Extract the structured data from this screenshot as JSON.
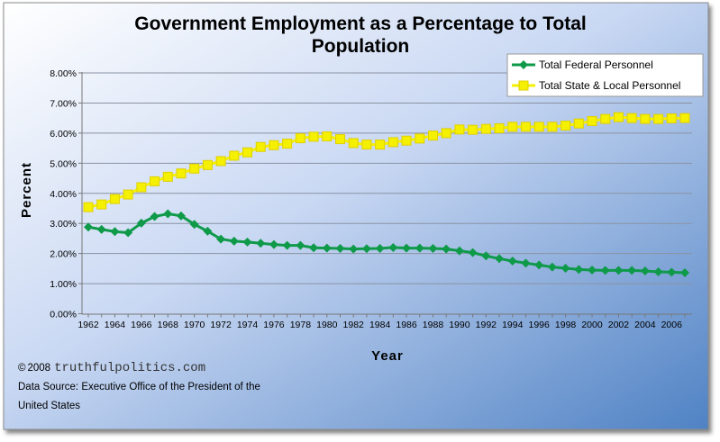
{
  "chart_data": {
    "type": "line",
    "title": "Government Employment as a Percentage to Total Population",
    "title_lines": [
      "Government Employment as a Percentage to Total",
      "Population"
    ],
    "xlabel": "Year",
    "ylabel": "Percent",
    "ylim": [
      0,
      8
    ],
    "yticks": [
      "0.00%",
      "1.00%",
      "2.00%",
      "3.00%",
      "4.00%",
      "5.00%",
      "6.00%",
      "7.00%",
      "8.00%"
    ],
    "xticks": [
      "1962",
      "1964",
      "1966",
      "1968",
      "1970",
      "1972",
      "1974",
      "1976",
      "1978",
      "1980",
      "1982",
      "1984",
      "1986",
      "1988",
      "1990",
      "1992",
      "1994",
      "1996",
      "1998",
      "2000",
      "2002",
      "2004",
      "2006"
    ],
    "grid": true,
    "legend_placement": "top-right",
    "x": [
      1962,
      1963,
      1964,
      1965,
      1966,
      1967,
      1968,
      1969,
      1970,
      1971,
      1972,
      1973,
      1974,
      1975,
      1976,
      1977,
      1978,
      1979,
      1980,
      1981,
      1982,
      1983,
      1984,
      1985,
      1986,
      1987,
      1988,
      1989,
      1990,
      1991,
      1992,
      1993,
      1994,
      1995,
      1996,
      1997,
      1998,
      1999,
      2000,
      2001,
      2002,
      2003,
      2004,
      2005,
      2006,
      2007
    ],
    "series": [
      {
        "name": "Total Federal Personnel",
        "color": "#0f9a4a",
        "marker": "diamond",
        "values": [
          2.88,
          2.8,
          2.73,
          2.69,
          3.01,
          3.23,
          3.32,
          3.25,
          2.97,
          2.74,
          2.48,
          2.41,
          2.38,
          2.34,
          2.3,
          2.27,
          2.27,
          2.19,
          2.18,
          2.17,
          2.15,
          2.16,
          2.17,
          2.2,
          2.18,
          2.18,
          2.17,
          2.15,
          2.09,
          2.03,
          1.92,
          1.83,
          1.75,
          1.68,
          1.62,
          1.55,
          1.51,
          1.47,
          1.45,
          1.44,
          1.44,
          1.44,
          1.42,
          1.39,
          1.38,
          1.36
        ]
      },
      {
        "name": "Total State & Local Personnel",
        "color": "#f5f000",
        "marker": "square",
        "values": [
          3.54,
          3.63,
          3.81,
          3.96,
          4.2,
          4.4,
          4.55,
          4.66,
          4.82,
          4.94,
          5.07,
          5.25,
          5.36,
          5.54,
          5.6,
          5.65,
          5.83,
          5.88,
          5.89,
          5.8,
          5.67,
          5.62,
          5.62,
          5.7,
          5.75,
          5.82,
          5.92,
          6.0,
          6.12,
          6.11,
          6.14,
          6.16,
          6.21,
          6.21,
          6.21,
          6.21,
          6.25,
          6.32,
          6.4,
          6.47,
          6.53,
          6.5,
          6.47,
          6.47,
          6.49,
          6.5
        ]
      }
    ]
  },
  "footer": {
    "copyright_symbol": "©",
    "year": "2008",
    "site": "truthfulpolitics.com",
    "source_line1": "Data Source:  Executive Office of the President of the",
    "source_line2": "United States"
  }
}
